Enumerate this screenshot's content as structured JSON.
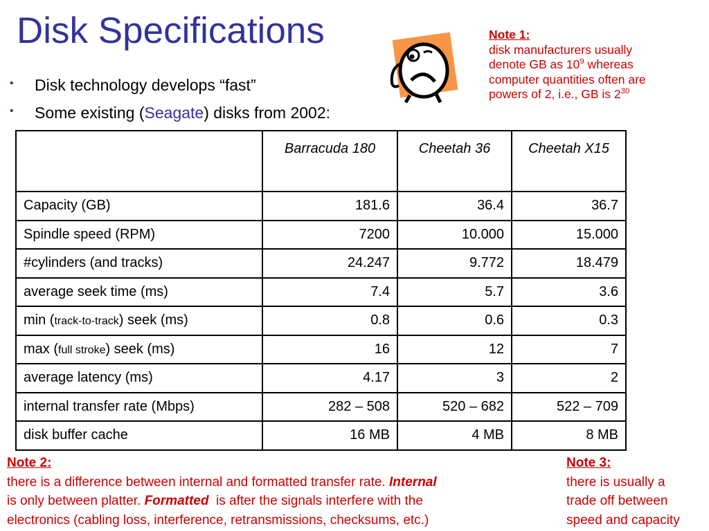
{
  "title": "Disk Specifications",
  "bullets": [
    [
      "Disk technology develops “fast”"
    ],
    [
      "Some existing (",
      "Seagate",
      ") disks from 2002:"
    ]
  ],
  "note1": {
    "heading": "Note 1:",
    "lines": [
      [
        "disk manufacturers usually"
      ],
      [
        "denote GB as 10",
        "9",
        " whereas"
      ],
      [
        "computer quantities often are"
      ],
      [
        "powers of 2, i.e., GB is 2",
        "30"
      ]
    ]
  },
  "table": {
    "header": [
      "Barracuda 180",
      "Cheetah 36",
      "Cheetah X15"
    ],
    "rows": [
      {
        "label": [
          "Capacity (GB)"
        ],
        "cells": [
          "181.6",
          "36.4",
          "36.7"
        ]
      },
      {
        "label": [
          "Spindle speed (RPM)"
        ],
        "cells": [
          "7200",
          "10.000",
          "15.000"
        ]
      },
      {
        "label": [
          "#cylinders (and tracks)"
        ],
        "cells": [
          "24.247",
          "9.772",
          "18.479"
        ]
      },
      {
        "label": [
          "average seek time (ms)"
        ],
        "cells": [
          "7.4",
          "5.7",
          "3.6"
        ]
      },
      {
        "label": [
          "min (",
          "track-to-track",
          ") seek (ms)"
        ],
        "cells": [
          "0.8",
          "0.6",
          "0.3"
        ]
      },
      {
        "label": [
          "max (",
          "full stroke",
          ") seek (ms)"
        ],
        "cells": [
          "16",
          "12",
          "7"
        ]
      },
      {
        "label": [
          "average latency (ms)"
        ],
        "cells": [
          "4.17",
          "3",
          "2"
        ]
      },
      {
        "label": [
          "internal transfer rate (Mbps)"
        ],
        "cells": [
          "282 – 508",
          "520 – 682",
          "522 – 709"
        ]
      },
      {
        "label": [
          "disk buffer cache"
        ],
        "cells": [
          "16 MB",
          "4 MB",
          "8 MB"
        ]
      }
    ]
  },
  "note2": {
    "heading": "Note 2:",
    "lines": [
      [
        "there is a difference between internal and formatted transfer rate. ",
        "Internal"
      ],
      [
        "is only between platter. ",
        "Formatted",
        "  is after the signals interfere with the"
      ],
      [
        "electronics (cabling loss, interference, retransmissions, checksums, etc.)"
      ]
    ]
  },
  "note3": {
    "heading": "Note 3:",
    "lines": [
      [
        "there is usually a"
      ],
      [
        "trade off between"
      ],
      [
        "speed and capacity"
      ]
    ]
  }
}
